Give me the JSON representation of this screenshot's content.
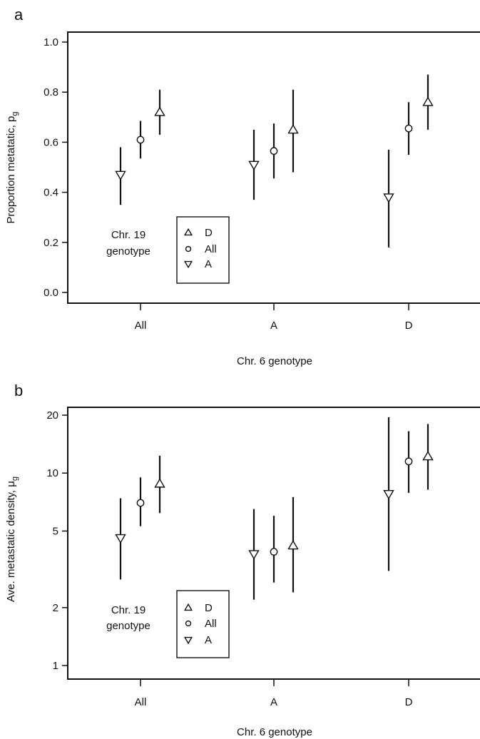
{
  "chart_data": [
    {
      "panel_label": "a",
      "type": "scatter",
      "xlabel": "Chr. 6 genotype",
      "ylabel": "Proportion metatatic, p",
      "ylabel_sub": "g",
      "categories": [
        "All",
        "A",
        "D"
      ],
      "yscale": "linear",
      "ylim": [
        0.0,
        1.0
      ],
      "yticks": [
        0.0,
        0.2,
        0.4,
        0.6,
        0.8,
        1.0
      ],
      "ytick_labels": [
        "0.0",
        "0.2",
        "0.4",
        "0.6",
        "0.8",
        "1.0"
      ],
      "legend_title_lines": [
        "Chr. 19",
        "genotype"
      ],
      "legend_items": [
        {
          "symbol": "triangle-up",
          "label": "D"
        },
        {
          "symbol": "circle",
          "label": "All"
        },
        {
          "symbol": "triangle-down",
          "label": "A"
        }
      ],
      "series": [
        {
          "chr19": "A",
          "symbol": "triangle-down",
          "y": [
            0.47,
            0.51,
            0.38
          ],
          "lower": [
            0.35,
            0.37,
            0.18
          ],
          "upper": [
            0.58,
            0.65,
            0.57
          ]
        },
        {
          "chr19": "All",
          "symbol": "circle",
          "y": [
            0.61,
            0.565,
            0.655
          ],
          "lower": [
            0.535,
            0.455,
            0.55
          ],
          "upper": [
            0.685,
            0.675,
            0.76
          ]
        },
        {
          "chr19": "D",
          "symbol": "triangle-up",
          "y": [
            0.72,
            0.65,
            0.76
          ],
          "lower": [
            0.63,
            0.48,
            0.65
          ],
          "upper": [
            0.81,
            0.81,
            0.87
          ]
        }
      ]
    },
    {
      "panel_label": "b",
      "type": "scatter",
      "xlabel": "Chr. 6 genotype",
      "ylabel": "Ave. metastatic density, μ",
      "ylabel_sub": "g",
      "categories": [
        "All",
        "A",
        "D"
      ],
      "yscale": "log",
      "ylim": [
        1,
        20
      ],
      "yticks": [
        1,
        2,
        5,
        10,
        20
      ],
      "ytick_labels": [
        "1",
        "2",
        "5",
        "10",
        "20"
      ],
      "legend_title_lines": [
        "Chr. 19",
        "genotype"
      ],
      "legend_items": [
        {
          "symbol": "triangle-up",
          "label": "D"
        },
        {
          "symbol": "circle",
          "label": "All"
        },
        {
          "symbol": "triangle-down",
          "label": "A"
        }
      ],
      "series": [
        {
          "chr19": "A",
          "symbol": "triangle-down",
          "y": [
            4.6,
            3.8,
            7.8
          ],
          "lower": [
            2.8,
            2.2,
            3.1
          ],
          "upper": [
            7.4,
            6.5,
            19.5
          ]
        },
        {
          "chr19": "All",
          "symbol": "circle",
          "y": [
            7.0,
            3.9,
            11.5
          ],
          "lower": [
            5.3,
            2.7,
            7.9
          ],
          "upper": [
            9.5,
            6.0,
            16.5
          ]
        },
        {
          "chr19": "D",
          "symbol": "triangle-up",
          "y": [
            8.8,
            4.2,
            12.2
          ],
          "lower": [
            6.2,
            2.4,
            8.2
          ],
          "upper": [
            12.3,
            7.5,
            18.0
          ]
        }
      ]
    }
  ]
}
